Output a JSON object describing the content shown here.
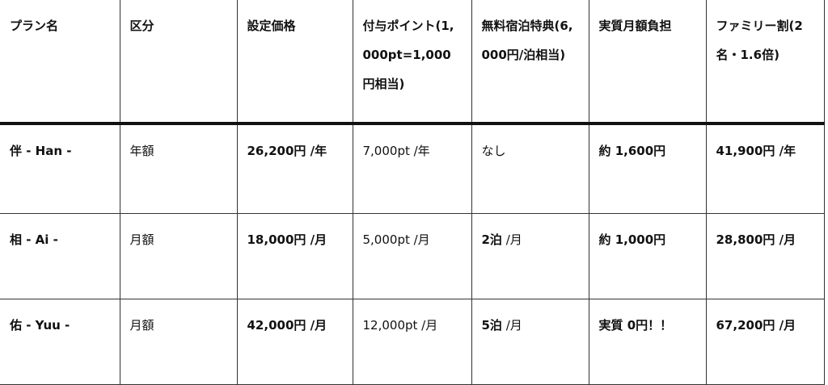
{
  "headers": [
    "プラン名",
    "区分",
    "設定価格",
    "付与ポイント(1,000pt=1,000円相当)",
    "無料宿泊特典(6,000円/泊相当)",
    "実質月額負担",
    "ファミリー割(2名・1.6倍)"
  ],
  "rows": [
    {
      "name": "伴 - Han -",
      "type": "年額",
      "price": "26,200円 /年",
      "points": "7,000pt /年",
      "stay_b": "",
      "stay_n": "なし",
      "burden": "約 1,600円",
      "family": "41,900円 /年"
    },
    {
      "name": "相 - Ai -",
      "type": "月額",
      "price": "18,000円 /月",
      "points": "5,000pt /月",
      "stay_b": "2泊",
      "stay_n": " /月",
      "burden": "約 1,000円",
      "family": "28,800円 /月"
    },
    {
      "name": "佑 - Yuu -",
      "type": "月額",
      "price": "42,000円 /月",
      "points": "12,000pt /月",
      "stay_b": "5泊",
      "stay_n": " /月",
      "burden": "実質 0円！！",
      "family": "67,200円 /月"
    }
  ]
}
